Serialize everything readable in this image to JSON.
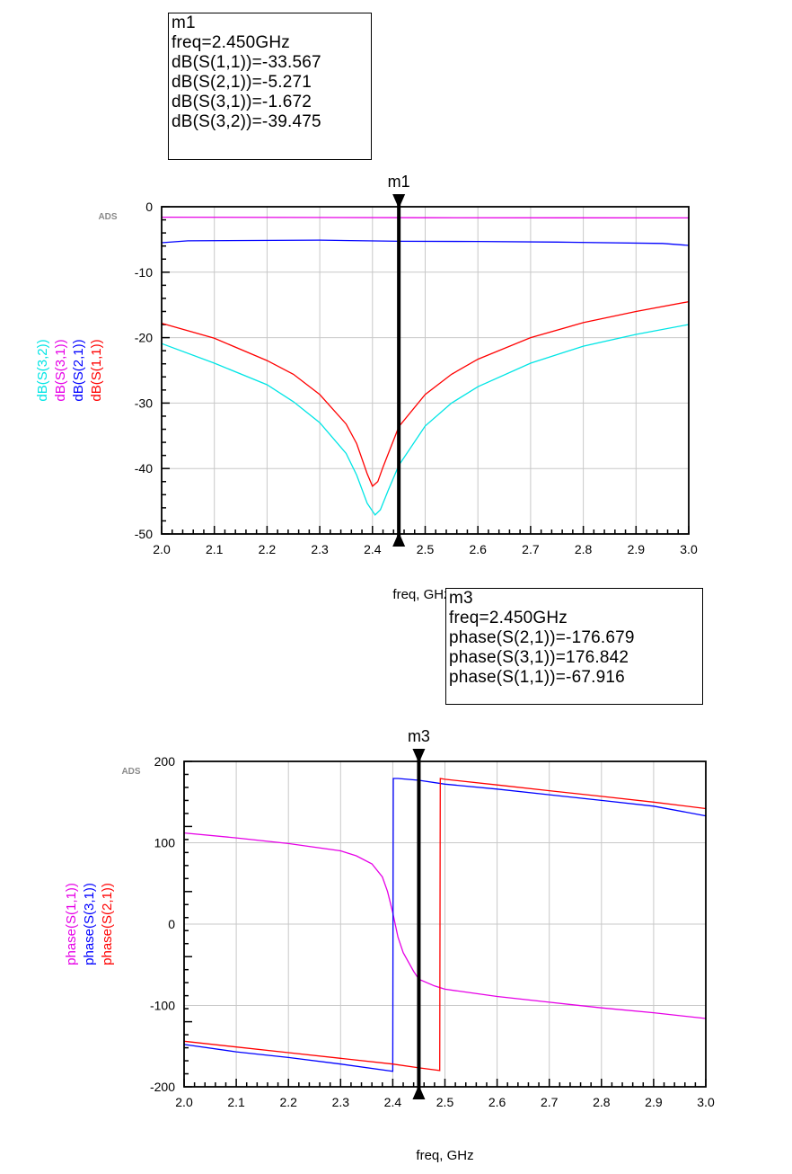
{
  "marker_boxes": {
    "m1": {
      "name": "m1",
      "lines": [
        "freq=2.450GHz",
        "dB(S(1,1))=-33.567",
        "dB(S(2,1))=-5.271",
        "dB(S(3,1))=-1.672",
        "dB(S(3,2))=-39.475"
      ]
    },
    "m3": {
      "name": "m3",
      "lines": [
        "freq=2.450GHz",
        "phase(S(2,1))=-176.679",
        "phase(S(3,1))=176.842",
        "phase(S(1,1))=-67.916"
      ]
    }
  },
  "chart_data": [
    {
      "type": "line",
      "id": "magnitude",
      "xlabel": "freq, GHz",
      "watermark": "ADS",
      "xlim": [
        2.0,
        3.0
      ],
      "ylim": [
        -50,
        0
      ],
      "xticks": [
        "2.0",
        "2.1",
        "2.2",
        "2.3",
        "2.4",
        "2.5",
        "2.6",
        "2.7",
        "2.8",
        "2.9",
        "3.0"
      ],
      "yticks": [
        "0",
        "-10",
        "-20",
        "-30",
        "-40",
        "-50"
      ],
      "ytick_values": [
        0,
        -10,
        -20,
        -30,
        -40,
        -50
      ],
      "grid": true,
      "marker": {
        "name": "m1",
        "x": 2.45
      },
      "ylabels": [
        {
          "text": "dB(S(3,2))",
          "color": "#00e5e5"
        },
        {
          "text": "dB(S(3,1))",
          "color": "#e600e6"
        },
        {
          "text": "dB(S(2,1))",
          "color": "#0000ff"
        },
        {
          "text": "dB(S(1,1))",
          "color": "#ff0000"
        }
      ],
      "series": [
        {
          "color": "#e600e6",
          "x": [
            2.0,
            2.5,
            3.0
          ],
          "y": [
            -1.6,
            -1.67,
            -1.7
          ]
        },
        {
          "color": "#0000ff",
          "x": [
            2.0,
            2.05,
            2.3,
            2.45,
            2.6,
            2.75,
            2.95,
            3.0
          ],
          "y": [
            -5.5,
            -5.2,
            -5.1,
            -5.27,
            -5.3,
            -5.4,
            -5.6,
            -5.9
          ]
        },
        {
          "color": "#ff0000",
          "x": [
            2.0,
            2.1,
            2.2,
            2.25,
            2.3,
            2.35,
            2.37,
            2.39,
            2.4,
            2.41,
            2.42,
            2.45,
            2.5,
            2.55,
            2.6,
            2.7,
            2.8,
            2.9,
            3.0
          ],
          "y": [
            -17.8,
            -20.1,
            -23.5,
            -25.6,
            -28.7,
            -33.2,
            -36.2,
            -40.8,
            -42.7,
            -42.0,
            -39.8,
            -33.6,
            -28.7,
            -25.6,
            -23.3,
            -20.0,
            -17.7,
            -16.0,
            -14.5
          ]
        },
        {
          "color": "#00e5e5",
          "x": [
            2.0,
            2.1,
            2.2,
            2.25,
            2.3,
            2.35,
            2.37,
            2.39,
            2.405,
            2.415,
            2.43,
            2.45,
            2.5,
            2.55,
            2.6,
            2.7,
            2.8,
            2.9,
            3.0
          ],
          "y": [
            -20.9,
            -23.9,
            -27.2,
            -29.8,
            -33.0,
            -37.7,
            -41.0,
            -45.3,
            -47.1,
            -46.3,
            -43.3,
            -39.5,
            -33.5,
            -30.0,
            -27.5,
            -23.9,
            -21.3,
            -19.5,
            -18.0
          ]
        }
      ]
    },
    {
      "type": "line",
      "id": "phase",
      "xlabel": "freq, GHz",
      "watermark": "ADS",
      "xlim": [
        2.0,
        3.0
      ],
      "ylim": [
        -200,
        200
      ],
      "xticks": [
        "2.0",
        "2.1",
        "2.2",
        "2.3",
        "2.4",
        "2.5",
        "2.6",
        "2.7",
        "2.8",
        "2.9",
        "3.0"
      ],
      "yticks": [
        "200",
        "100",
        "0",
        "-100",
        "-200"
      ],
      "ytick_values": [
        200,
        100,
        0,
        -100,
        -200
      ],
      "grid": true,
      "marker": {
        "name": "m3",
        "x": 2.45
      },
      "ylabels": [
        {
          "text": "phase(S(1,1))",
          "color": "#e600e6"
        },
        {
          "text": "phase(S(3,1))",
          "color": "#0000ff"
        },
        {
          "text": "phase(S(2,1))",
          "color": "#ff0000"
        }
      ],
      "series": [
        {
          "color": "#e600e6",
          "x": [
            2.0,
            2.1,
            2.2,
            2.3,
            2.33,
            2.36,
            2.38,
            2.39,
            2.4,
            2.41,
            2.42,
            2.44,
            2.45,
            2.48,
            2.5,
            2.6,
            2.7,
            2.8,
            2.9,
            3.0
          ],
          "y": [
            112,
            106,
            99,
            90,
            84,
            74,
            58,
            40,
            14,
            -16,
            -35,
            -58,
            -67.9,
            -76,
            -80,
            -89,
            -96,
            -103,
            -109,
            -116
          ]
        },
        {
          "color": "#0000ff",
          "x": [
            2.0,
            2.1,
            2.2,
            2.3,
            2.4,
            2.401,
            2.41,
            2.45,
            2.5,
            2.6,
            2.7,
            2.8,
            2.9,
            3.0
          ],
          "y": [
            -148,
            -157,
            -164,
            -172,
            -181,
            179,
            179,
            176.8,
            172,
            166,
            159,
            152,
            145,
            133
          ]
        },
        {
          "color": "#ff0000",
          "x": [
            2.0,
            2.1,
            2.2,
            2.3,
            2.4,
            2.45,
            2.49,
            2.491,
            2.5,
            2.6,
            2.7,
            2.8,
            2.9,
            3.0
          ],
          "y": [
            -144,
            -151,
            -158,
            -165,
            -172,
            -176.7,
            -180,
            179,
            178,
            171,
            164,
            157,
            150,
            142
          ]
        }
      ]
    }
  ]
}
